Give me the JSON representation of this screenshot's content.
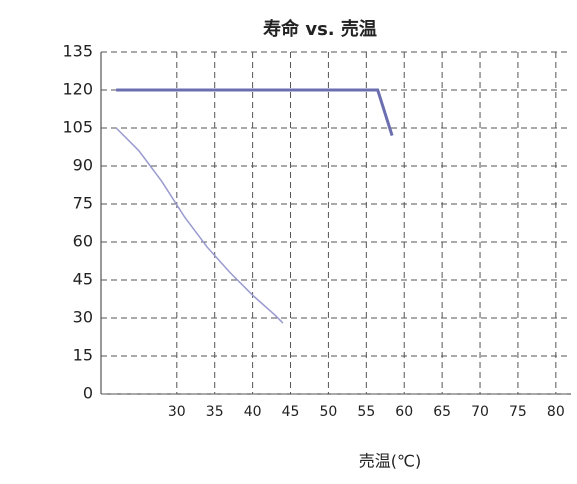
{
  "chart_data": {
    "type": "line",
    "title": "寿命 vs. 売温",
    "x_label": "売温(℃)",
    "xlim": [
      20,
      82
    ],
    "xticks": [
      30,
      35,
      40,
      45,
      50,
      55,
      60,
      65,
      70,
      75,
      80
    ],
    "ylim": [
      0,
      135
    ],
    "yticks": [
      0,
      15,
      30,
      45,
      60,
      75,
      90,
      105,
      120,
      135
    ],
    "grid": true,
    "series": [
      {
        "color": "#6b6fb0",
        "x": [
          22,
          56.5,
          58.4
        ],
        "values": [
          120,
          120,
          102
        ]
      },
      {
        "color": "#9a9ad0",
        "x": [
          22,
          25,
          28,
          31,
          34,
          37,
          40,
          43,
          44
        ],
        "values": [
          105,
          96,
          84,
          70,
          58,
          48,
          39,
          31,
          28
        ]
      }
    ]
  }
}
